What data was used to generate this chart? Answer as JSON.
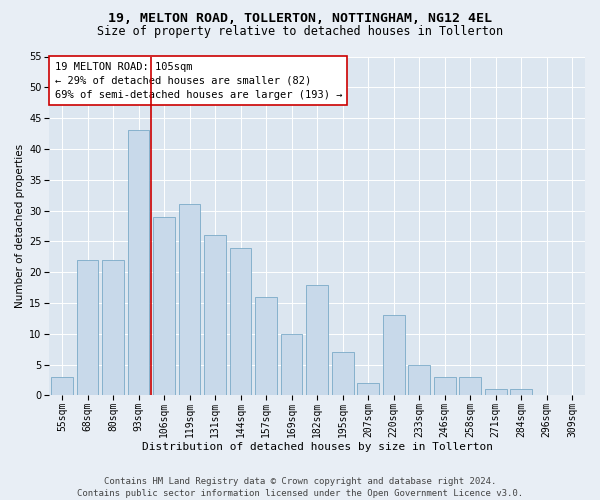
{
  "title_line1": "19, MELTON ROAD, TOLLERTON, NOTTINGHAM, NG12 4EL",
  "title_line2": "Size of property relative to detached houses in Tollerton",
  "xlabel": "Distribution of detached houses by size in Tollerton",
  "ylabel": "Number of detached properties",
  "categories": [
    "55sqm",
    "68sqm",
    "80sqm",
    "93sqm",
    "106sqm",
    "119sqm",
    "131sqm",
    "144sqm",
    "157sqm",
    "169sqm",
    "182sqm",
    "195sqm",
    "207sqm",
    "220sqm",
    "233sqm",
    "246sqm",
    "258sqm",
    "271sqm",
    "284sqm",
    "296sqm",
    "309sqm"
  ],
  "values": [
    3,
    22,
    22,
    43,
    29,
    31,
    26,
    24,
    16,
    10,
    18,
    7,
    2,
    13,
    5,
    3,
    3,
    1,
    1,
    0,
    0
  ],
  "bar_color": "#c8d9ea",
  "bar_edge_color": "#7aaac8",
  "vline_x": 3.5,
  "marker_label": "19 MELTON ROAD: 105sqm",
  "annotation_line1": "← 29% of detached houses are smaller (82)",
  "annotation_line2": "69% of semi-detached houses are larger (193) →",
  "vline_color": "#cc0000",
  "box_edge_color": "#cc0000",
  "ylim": [
    0,
    55
  ],
  "yticks": [
    0,
    5,
    10,
    15,
    20,
    25,
    30,
    35,
    40,
    45,
    50,
    55
  ],
  "bg_color": "#e8eef5",
  "plot_bg_color": "#dce6f0",
  "grid_color": "#ffffff",
  "footer_line1": "Contains HM Land Registry data © Crown copyright and database right 2024.",
  "footer_line2": "Contains public sector information licensed under the Open Government Licence v3.0.",
  "title_fontsize": 9.5,
  "subtitle_fontsize": 8.5,
  "ylabel_fontsize": 7.5,
  "xlabel_fontsize": 8,
  "tick_fontsize": 7,
  "ann_fontsize": 7.5,
  "footer_fontsize": 6.5
}
